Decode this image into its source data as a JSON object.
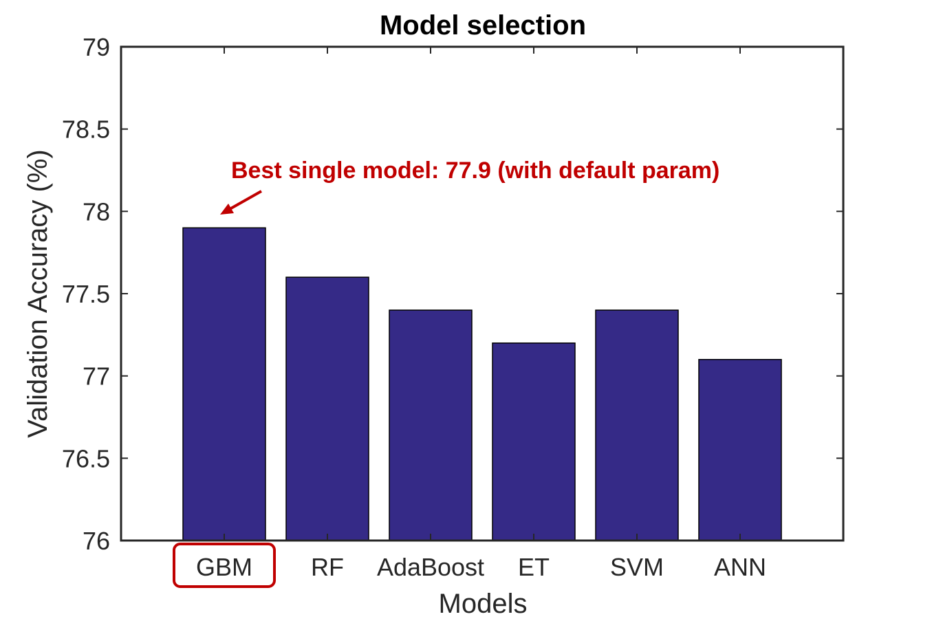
{
  "chart_data": {
    "type": "bar",
    "title": "Model selection",
    "xlabel": "Models",
    "ylabel": "Validation Accuracy (%)",
    "categories": [
      "GBM",
      "RF",
      "AdaBoost",
      "ET",
      "SVM",
      "ANN"
    ],
    "values": [
      77.9,
      77.6,
      77.4,
      77.2,
      77.4,
      77.1
    ],
    "ylim": [
      76,
      79
    ],
    "yticks": [
      76,
      76.5,
      77,
      77.5,
      78,
      78.5,
      79
    ],
    "ytick_labels": [
      "76",
      "76.5",
      "77",
      "77.5",
      "78",
      "78.5",
      "79"
    ],
    "grid": false,
    "bar_color": "#352a87",
    "annotation": {
      "text": "Best single model: 77.9 (with default param)",
      "target_category": "GBM",
      "color": "#c00000"
    },
    "highlight_category": "GBM",
    "highlight_color": "#c00000"
  }
}
